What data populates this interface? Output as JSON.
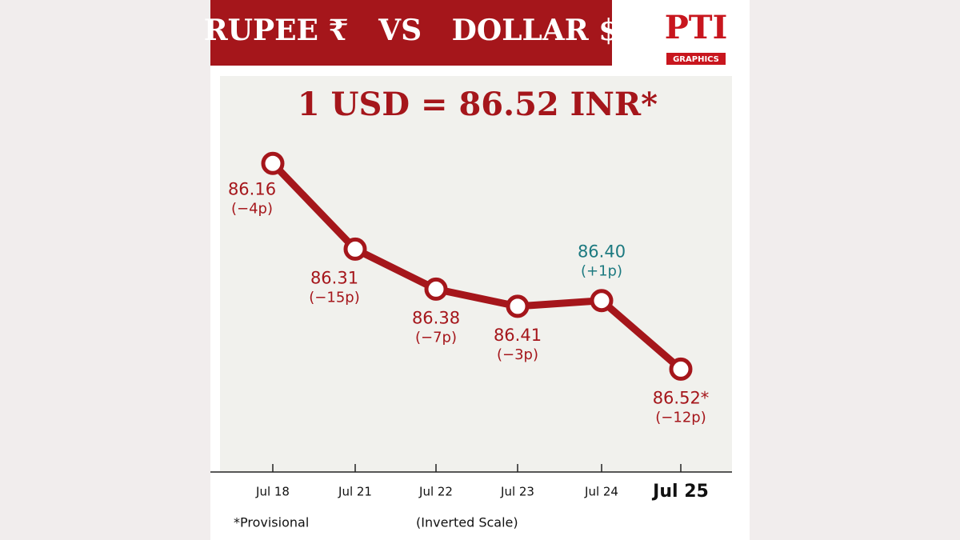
{
  "chart_data": {
    "type": "line",
    "title": "RUPEE ₹   VS   DOLLAR $",
    "logo": {
      "top": "PTI",
      "bottom": "GRAPHICS"
    },
    "headline": "1 USD = 86.52 INR*",
    "categories": [
      "Jul 18",
      "Jul 21",
      "Jul 22",
      "Jul 23",
      "Jul 24",
      "Jul 25"
    ],
    "values": [
      86.16,
      86.31,
      86.38,
      86.41,
      86.4,
      86.52
    ],
    "value_labels": [
      "86.16",
      "86.31",
      "86.38",
      "86.41",
      "86.40",
      "86.52*"
    ],
    "changes": [
      "(−4p)",
      "(−15p)",
      "(−7p)",
      "(−3p)",
      "(+1p)",
      "(−12p)"
    ],
    "value_label_colors": [
      "#a5161b",
      "#a5161b",
      "#a5161b",
      "#a5161b",
      "#1d7a80",
      "#a5161b"
    ],
    "color": "#a5161b",
    "ylim": [
      86.0,
      86.7
    ],
    "inverted": true,
    "footnote": "*Provisional",
    "scale_note": "(Inverted Scale)"
  }
}
